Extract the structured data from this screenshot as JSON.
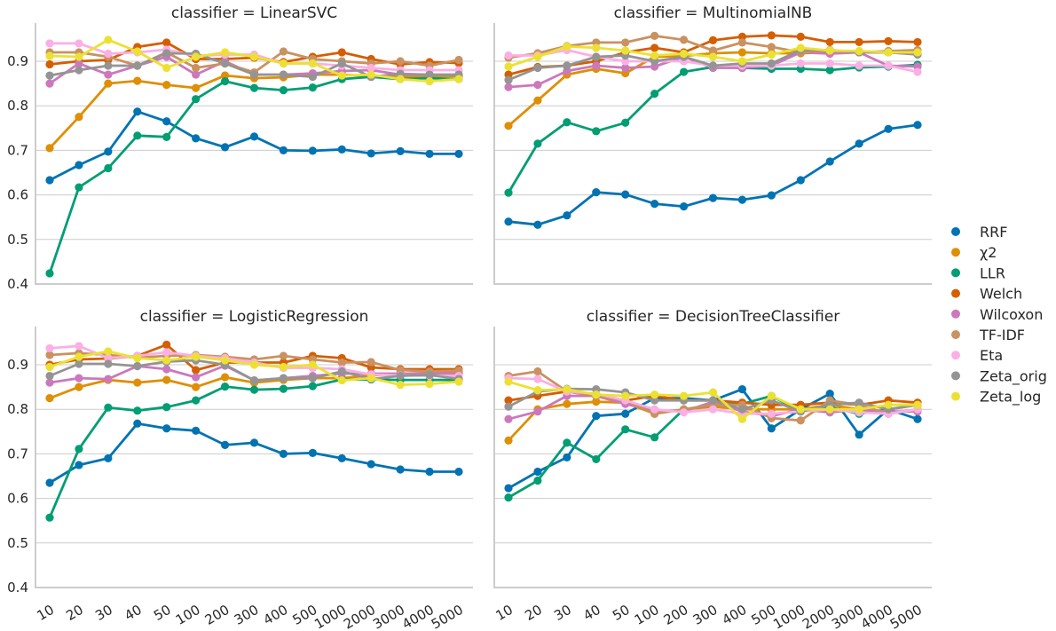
{
  "colors": {
    "RRF": "#0173b2",
    "χ2": "#de8f05",
    "LLR": "#029e73",
    "Welch": "#d55e00",
    "Wilcoxon": "#cc78bc",
    "TF-IDF": "#ca9161",
    "Eta": "#fbafe4",
    "Zeta_orig": "#949494",
    "Zeta_log": "#ece133"
  },
  "legend": [
    "RRF",
    "χ2",
    "LLR",
    "Welch",
    "Wilcoxon",
    "TF-IDF",
    "Eta",
    "Zeta_orig",
    "Zeta_log"
  ],
  "chart_data": [
    {
      "type": "line",
      "title": "classifier = LinearSVC",
      "categories": [
        "10",
        "20",
        "30",
        "40",
        "50",
        "100",
        "200",
        "300",
        "400",
        "500",
        "1000",
        "2000",
        "3000",
        "4000",
        "5000"
      ],
      "ylim": [
        0.4,
        0.99
      ],
      "yticks": [
        "0.4",
        "0.5",
        "0.6",
        "0.7",
        "0.8",
        "0.9"
      ],
      "series": [
        {
          "name": "RRF",
          "values": [
            0.633,
            0.667,
            0.697,
            0.787,
            0.765,
            0.727,
            0.707,
            0.731,
            0.7,
            0.699,
            0.702,
            0.693,
            0.698,
            0.692,
            0.692
          ]
        },
        {
          "name": "χ2",
          "values": [
            0.705,
            0.775,
            0.85,
            0.856,
            0.847,
            0.84,
            0.868,
            0.862,
            0.864,
            0.87,
            0.87,
            0.867,
            0.865,
            0.866,
            0.867
          ]
        },
        {
          "name": "LLR",
          "values": [
            0.424,
            0.617,
            0.66,
            0.733,
            0.73,
            0.815,
            0.855,
            0.84,
            0.835,
            0.841,
            0.86,
            0.865,
            0.86,
            0.862,
            0.86
          ]
        },
        {
          "name": "Welch",
          "values": [
            0.893,
            0.9,
            0.903,
            0.932,
            0.942,
            0.905,
            0.905,
            0.908,
            0.898,
            0.91,
            0.92,
            0.905,
            0.893,
            0.898,
            0.896
          ]
        },
        {
          "name": "Wilcoxon",
          "values": [
            0.85,
            0.895,
            0.87,
            0.89,
            0.91,
            0.87,
            0.9,
            0.87,
            0.87,
            0.873,
            0.878,
            0.88,
            0.87,
            0.87,
            0.87
          ]
        },
        {
          "name": "TF-IDF",
          "values": [
            0.92,
            0.92,
            0.91,
            0.89,
            0.92,
            0.885,
            0.895,
            0.875,
            0.922,
            0.905,
            0.9,
            0.895,
            0.9,
            0.89,
            0.903
          ]
        },
        {
          "name": "Eta",
          "values": [
            0.94,
            0.94,
            0.917,
            0.92,
            0.926,
            0.912,
            0.915,
            0.915,
            0.895,
            0.895,
            0.89,
            0.885,
            0.88,
            0.88,
            0.88
          ]
        },
        {
          "name": "Zeta_orig",
          "values": [
            0.868,
            0.88,
            0.89,
            0.89,
            0.918,
            0.917,
            0.895,
            0.87,
            0.87,
            0.865,
            0.895,
            0.865,
            0.872,
            0.87,
            0.87
          ]
        },
        {
          "name": "Zeta_log",
          "values": [
            0.912,
            0.91,
            0.948,
            0.922,
            0.885,
            0.91,
            0.92,
            0.91,
            0.895,
            0.895,
            0.868,
            0.87,
            0.86,
            0.855,
            0.86
          ]
        }
      ]
    },
    {
      "type": "line",
      "title": "classifier = MultinomialNB",
      "categories": [
        "10",
        "20",
        "30",
        "40",
        "50",
        "100",
        "200",
        "300",
        "400",
        "500",
        "1000",
        "2000",
        "3000",
        "4000",
        "5000"
      ],
      "ylim": [
        0.4,
        0.99
      ],
      "yticks": [
        "0.4",
        "0.5",
        "0.6",
        "0.7",
        "0.8",
        "0.9"
      ],
      "series": [
        {
          "name": "RRF",
          "values": [
            0.54,
            0.533,
            0.554,
            0.606,
            0.601,
            0.58,
            0.574,
            0.593,
            0.589,
            0.599,
            0.633,
            0.675,
            0.715,
            0.748,
            0.757
          ]
        },
        {
          "name": "χ2",
          "values": [
            0.755,
            0.812,
            0.87,
            0.883,
            0.873,
            0.91,
            0.912,
            0.918,
            0.92,
            0.918,
            0.918,
            0.92,
            0.92,
            0.92,
            0.918
          ]
        },
        {
          "name": "LLR",
          "values": [
            0.605,
            0.715,
            0.763,
            0.743,
            0.762,
            0.827,
            0.876,
            0.887,
            0.885,
            0.883,
            0.883,
            0.88,
            0.886,
            0.888,
            0.892
          ]
        },
        {
          "name": "Welch",
          "values": [
            0.87,
            0.887,
            0.89,
            0.9,
            0.92,
            0.93,
            0.92,
            0.947,
            0.955,
            0.958,
            0.955,
            0.943,
            0.943,
            0.945,
            0.943
          ]
        },
        {
          "name": "Wilcoxon",
          "values": [
            0.842,
            0.847,
            0.878,
            0.89,
            0.885,
            0.888,
            0.91,
            0.885,
            0.885,
            0.89,
            0.92,
            0.917,
            0.92,
            0.89,
            0.888
          ]
        },
        {
          "name": "TF-IDF",
          "values": [
            0.908,
            0.918,
            0.934,
            0.942,
            0.942,
            0.957,
            0.948,
            0.924,
            0.942,
            0.932,
            0.92,
            0.924,
            0.92,
            0.923,
            0.925
          ]
        },
        {
          "name": "Eta",
          "values": [
            0.913,
            0.913,
            0.925,
            0.91,
            0.9,
            0.9,
            0.9,
            0.89,
            0.89,
            0.89,
            0.895,
            0.895,
            0.89,
            0.89,
            0.876
          ]
        },
        {
          "name": "Zeta_orig",
          "values": [
            0.858,
            0.885,
            0.89,
            0.91,
            0.913,
            0.9,
            0.91,
            0.89,
            0.895,
            0.895,
            0.925,
            0.925,
            0.92,
            0.92,
            0.915
          ]
        },
        {
          "name": "Zeta_log",
          "values": [
            0.888,
            0.91,
            0.933,
            0.93,
            0.924,
            0.913,
            0.917,
            0.91,
            0.9,
            0.915,
            0.93,
            0.924,
            0.923,
            0.92,
            0.92
          ]
        }
      ]
    },
    {
      "type": "line",
      "title": "classifier = LogisticRegression",
      "categories": [
        "10",
        "20",
        "30",
        "40",
        "50",
        "100",
        "200",
        "300",
        "400",
        "500",
        "1000",
        "2000",
        "3000",
        "4000",
        "5000"
      ],
      "ylim": [
        0.4,
        0.99
      ],
      "yticks": [
        "0.4",
        "0.5",
        "0.6",
        "0.7",
        "0.8",
        "0.9"
      ],
      "series": [
        {
          "name": "RRF",
          "values": [
            0.635,
            0.675,
            0.69,
            0.768,
            0.757,
            0.752,
            0.72,
            0.725,
            0.7,
            0.702,
            0.69,
            0.677,
            0.665,
            0.66,
            0.66
          ]
        },
        {
          "name": "χ2",
          "values": [
            0.825,
            0.85,
            0.866,
            0.86,
            0.866,
            0.85,
            0.872,
            0.86,
            0.866,
            0.87,
            0.87,
            0.876,
            0.88,
            0.881,
            0.882
          ]
        },
        {
          "name": "LLR",
          "values": [
            0.557,
            0.711,
            0.804,
            0.797,
            0.805,
            0.82,
            0.851,
            0.844,
            0.846,
            0.852,
            0.867,
            0.867,
            0.866,
            0.866,
            0.866
          ]
        },
        {
          "name": "Welch",
          "values": [
            0.9,
            0.912,
            0.914,
            0.92,
            0.945,
            0.888,
            0.905,
            0.905,
            0.905,
            0.92,
            0.915,
            0.894,
            0.89,
            0.89,
            0.89
          ]
        },
        {
          "name": "Wilcoxon",
          "values": [
            0.86,
            0.87,
            0.868,
            0.897,
            0.89,
            0.872,
            0.898,
            0.865,
            0.87,
            0.875,
            0.88,
            0.88,
            0.88,
            0.88,
            0.88
          ]
        },
        {
          "name": "TF-IDF",
          "values": [
            0.922,
            0.926,
            0.922,
            0.916,
            0.92,
            0.922,
            0.918,
            0.912,
            0.92,
            0.912,
            0.905,
            0.906,
            0.888,
            0.885,
            0.887
          ]
        },
        {
          "name": "Eta",
          "values": [
            0.937,
            0.942,
            0.915,
            0.92,
            0.928,
            0.92,
            0.915,
            0.905,
            0.893,
            0.893,
            0.89,
            0.878,
            0.876,
            0.875,
            0.875
          ]
        },
        {
          "name": "Zeta_orig",
          "values": [
            0.875,
            0.902,
            0.902,
            0.897,
            0.907,
            0.91,
            0.9,
            0.865,
            0.87,
            0.87,
            0.885,
            0.868,
            0.875,
            0.877,
            0.868
          ]
        },
        {
          "name": "Zeta_log",
          "values": [
            0.895,
            0.918,
            0.93,
            0.915,
            0.91,
            0.918,
            0.91,
            0.9,
            0.895,
            0.9,
            0.865,
            0.87,
            0.855,
            0.857,
            0.862
          ]
        }
      ]
    },
    {
      "type": "line",
      "title": "classifier = DecisionTreeClassifier",
      "categories": [
        "10",
        "20",
        "30",
        "40",
        "50",
        "100",
        "200",
        "300",
        "400",
        "500",
        "1000",
        "2000",
        "3000",
        "4000",
        "5000"
      ],
      "ylim": [
        0.4,
        0.99
      ],
      "yticks": [
        "0.4",
        "0.5",
        "0.6",
        "0.7",
        "0.8",
        "0.9"
      ],
      "series": [
        {
          "name": "RRF",
          "values": [
            0.623,
            0.66,
            0.692,
            0.785,
            0.79,
            0.825,
            0.825,
            0.82,
            0.845,
            0.757,
            0.8,
            0.835,
            0.743,
            0.8,
            0.778
          ]
        },
        {
          "name": "χ2",
          "values": [
            0.73,
            0.8,
            0.812,
            0.817,
            0.815,
            0.79,
            0.8,
            0.806,
            0.8,
            0.8,
            0.8,
            0.81,
            0.8,
            0.79,
            0.8
          ]
        },
        {
          "name": "LLR",
          "values": [
            0.602,
            0.64,
            0.725,
            0.688,
            0.755,
            0.737,
            0.8,
            0.81,
            0.812,
            0.83,
            0.795,
            0.805,
            0.79,
            0.8,
            0.81
          ]
        },
        {
          "name": "Welch",
          "values": [
            0.82,
            0.83,
            0.84,
            0.83,
            0.82,
            0.83,
            0.82,
            0.82,
            0.815,
            0.81,
            0.81,
            0.815,
            0.81,
            0.82,
            0.815
          ]
        },
        {
          "name": "Wilcoxon",
          "values": [
            0.778,
            0.795,
            0.83,
            0.83,
            0.812,
            0.798,
            0.795,
            0.817,
            0.795,
            0.785,
            0.8,
            0.793,
            0.8,
            0.795,
            0.795
          ]
        },
        {
          "name": "TF-IDF",
          "values": [
            0.875,
            0.885,
            0.84,
            0.83,
            0.82,
            0.79,
            0.8,
            0.81,
            0.81,
            0.78,
            0.775,
            0.82,
            0.81,
            0.79,
            0.8
          ]
        },
        {
          "name": "Eta",
          "values": [
            0.87,
            0.868,
            0.84,
            0.835,
            0.82,
            0.8,
            0.793,
            0.8,
            0.79,
            0.79,
            0.795,
            0.8,
            0.793,
            0.79,
            0.8
          ]
        },
        {
          "name": "Zeta_orig",
          "values": [
            0.806,
            0.84,
            0.846,
            0.845,
            0.838,
            0.82,
            0.82,
            0.82,
            0.8,
            0.82,
            0.795,
            0.81,
            0.815,
            0.8,
            0.81
          ]
        },
        {
          "name": "Zeta_log",
          "values": [
            0.862,
            0.843,
            0.845,
            0.833,
            0.83,
            0.833,
            0.83,
            0.838,
            0.778,
            0.83,
            0.8,
            0.8,
            0.8,
            0.81,
            0.81
          ]
        }
      ]
    }
  ]
}
